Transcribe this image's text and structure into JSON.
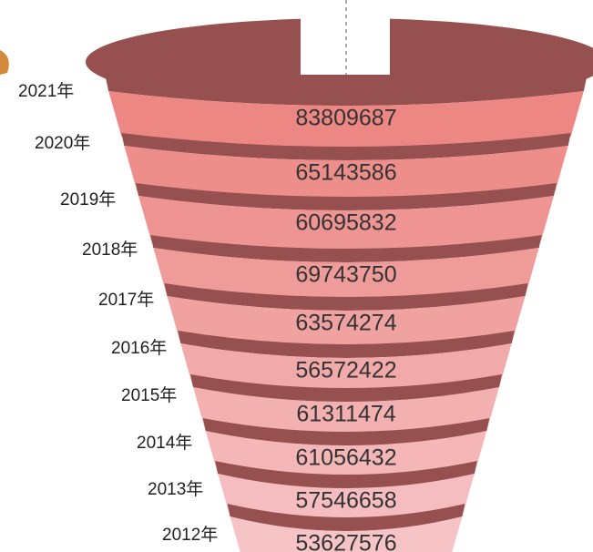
{
  "rows": [
    {
      "year": "2021年",
      "value": 83809687
    },
    {
      "year": "2020年",
      "value": 65143586
    },
    {
      "year": "2019年",
      "value": 60695832
    },
    {
      "year": "2018年",
      "value": 69743750
    },
    {
      "year": "2017年",
      "value": 63574274
    },
    {
      "year": "2016年",
      "value": 56572422
    },
    {
      "year": "2015年",
      "value": 61311474
    },
    {
      "year": "2014年",
      "value": 61056432
    },
    {
      "year": "2013年",
      "value": 57546658
    },
    {
      "year": "2012年",
      "value": 53627576
    }
  ]
}
